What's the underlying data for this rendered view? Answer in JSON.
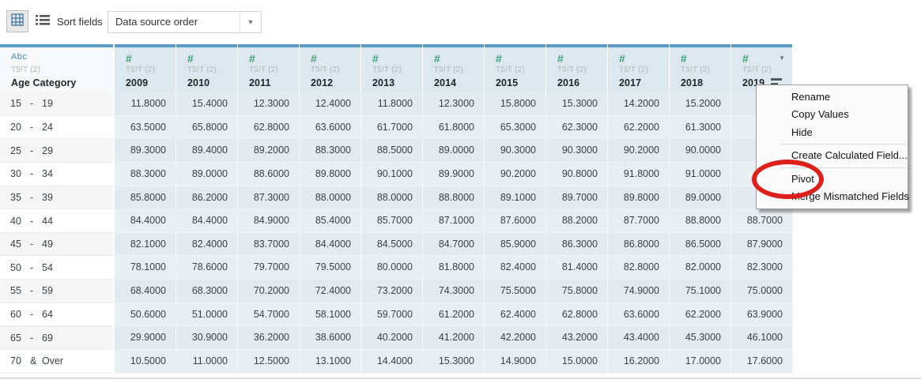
{
  "toolbar": {
    "grid_view_icon": "grid-icon",
    "list_view_icon": "list-icon",
    "sort_fields_label": "Sort fields",
    "sort_order_value": "Data source order",
    "dropdown_caret": "▼"
  },
  "table": {
    "string_type_icon": "Abc",
    "number_type_icon": "#",
    "row_header": {
      "field": "T5!T (2)",
      "name": "Age Category"
    },
    "columns": [
      {
        "field": "T5!T (2)",
        "year": "2009"
      },
      {
        "field": "T5!T (2)",
        "year": "2010"
      },
      {
        "field": "T5!T (2)",
        "year": "2011"
      },
      {
        "field": "T5!T (2)",
        "year": "2012"
      },
      {
        "field": "T5!T (2)",
        "year": "2013"
      },
      {
        "field": "T5!T (2)",
        "year": "2014"
      },
      {
        "field": "T5!T (2)",
        "year": "2015"
      },
      {
        "field": "T5!T (2)",
        "year": "2016"
      },
      {
        "field": "T5!T (2)",
        "year": "2017"
      },
      {
        "field": "T5!T (2)",
        "year": "2018"
      },
      {
        "field": "T5!T (2)",
        "year": "2019",
        "has_caret": true,
        "has_sort_icon": true
      }
    ],
    "rows": [
      {
        "label_parts": [
          "15",
          "-",
          "19"
        ],
        "values": [
          "11.8000",
          "15.4000",
          "12.3000",
          "12.4000",
          "11.8000",
          "12.3000",
          "15.8000",
          "15.3000",
          "14.2000",
          "15.2000",
          null
        ]
      },
      {
        "label_parts": [
          "20",
          "-",
          "24"
        ],
        "values": [
          "63.5000",
          "65.8000",
          "62.8000",
          "63.6000",
          "61.7000",
          "61.8000",
          "65.3000",
          "62.3000",
          "62.2000",
          "61.3000",
          null
        ]
      },
      {
        "label_parts": [
          "25",
          "-",
          "29"
        ],
        "values": [
          "89.3000",
          "89.4000",
          "89.2000",
          "88.3000",
          "88.5000",
          "89.0000",
          "90.3000",
          "90.3000",
          "90.2000",
          "90.0000",
          null
        ]
      },
      {
        "label_parts": [
          "30",
          "-",
          "34"
        ],
        "values": [
          "88.3000",
          "89.0000",
          "88.6000",
          "89.8000",
          "90.1000",
          "89.9000",
          "90.2000",
          "90.8000",
          "91.8000",
          "91.0000",
          null
        ]
      },
      {
        "label_parts": [
          "35",
          "-",
          "39"
        ],
        "values": [
          "85.8000",
          "86.2000",
          "87.3000",
          "88.0000",
          "88.0000",
          "88.8000",
          "89.1000",
          "89.7000",
          "89.8000",
          "89.0000",
          null
        ]
      },
      {
        "label_parts": [
          "40",
          "-",
          "44"
        ],
        "values": [
          "84.4000",
          "84.4000",
          "84.9000",
          "85.4000",
          "85.7000",
          "87.1000",
          "87.6000",
          "88.2000",
          "87.7000",
          "88.8000",
          "88.7000"
        ]
      },
      {
        "label_parts": [
          "45",
          "-",
          "49"
        ],
        "values": [
          "82.1000",
          "82.4000",
          "83.7000",
          "84.4000",
          "84.5000",
          "84.7000",
          "85.9000",
          "86.3000",
          "86.8000",
          "86.5000",
          "87.9000"
        ]
      },
      {
        "label_parts": [
          "50",
          "-",
          "54"
        ],
        "values": [
          "78.1000",
          "78.6000",
          "79.7000",
          "79.5000",
          "80.0000",
          "81.8000",
          "82.4000",
          "81.4000",
          "82.8000",
          "82.0000",
          "82.3000"
        ]
      },
      {
        "label_parts": [
          "55",
          "-",
          "59"
        ],
        "values": [
          "68.4000",
          "68.3000",
          "70.2000",
          "72.4000",
          "73.2000",
          "74.3000",
          "75.5000",
          "75.8000",
          "74.9000",
          "75.1000",
          "75.0000"
        ]
      },
      {
        "label_parts": [
          "60",
          "-",
          "64"
        ],
        "values": [
          "50.6000",
          "51.0000",
          "54.7000",
          "58.1000",
          "59.7000",
          "61.2000",
          "62.4000",
          "62.8000",
          "63.6000",
          "62.2000",
          "63.9000"
        ]
      },
      {
        "label_parts": [
          "65",
          "-",
          "69"
        ],
        "values": [
          "29.9000",
          "30.9000",
          "36.2000",
          "38.6000",
          "40.2000",
          "41.2000",
          "42.2000",
          "43.2000",
          "43.4000",
          "45.3000",
          "46.1000"
        ]
      },
      {
        "label_parts": [
          "70",
          "&",
          "Over"
        ],
        "values": [
          "10.5000",
          "11.0000",
          "12.5000",
          "13.1000",
          "14.4000",
          "15.3000",
          "14.9000",
          "15.0000",
          "16.2000",
          "17.0000",
          "17.6000"
        ]
      }
    ]
  },
  "context_menu": {
    "items": [
      {
        "type": "item",
        "label": "Rename"
      },
      {
        "type": "item",
        "label": "Copy Values"
      },
      {
        "type": "item",
        "label": "Hide"
      },
      {
        "type": "separator"
      },
      {
        "type": "item",
        "label": "Create Calculated Field..."
      },
      {
        "type": "separator"
      },
      {
        "type": "item",
        "label": "Pivot",
        "annotated": true
      },
      {
        "type": "item",
        "label": "Merge Mismatched Fields"
      }
    ]
  },
  "colors": {
    "selection_strip": "#5d9dc5",
    "selected_header_bg": "#dde7ee",
    "selected_cell_bg": "#e3eaf0",
    "number_type_green": "#3fa07a",
    "string_type_blue": "#4d87b0",
    "annotation_red": "#dd201b"
  }
}
